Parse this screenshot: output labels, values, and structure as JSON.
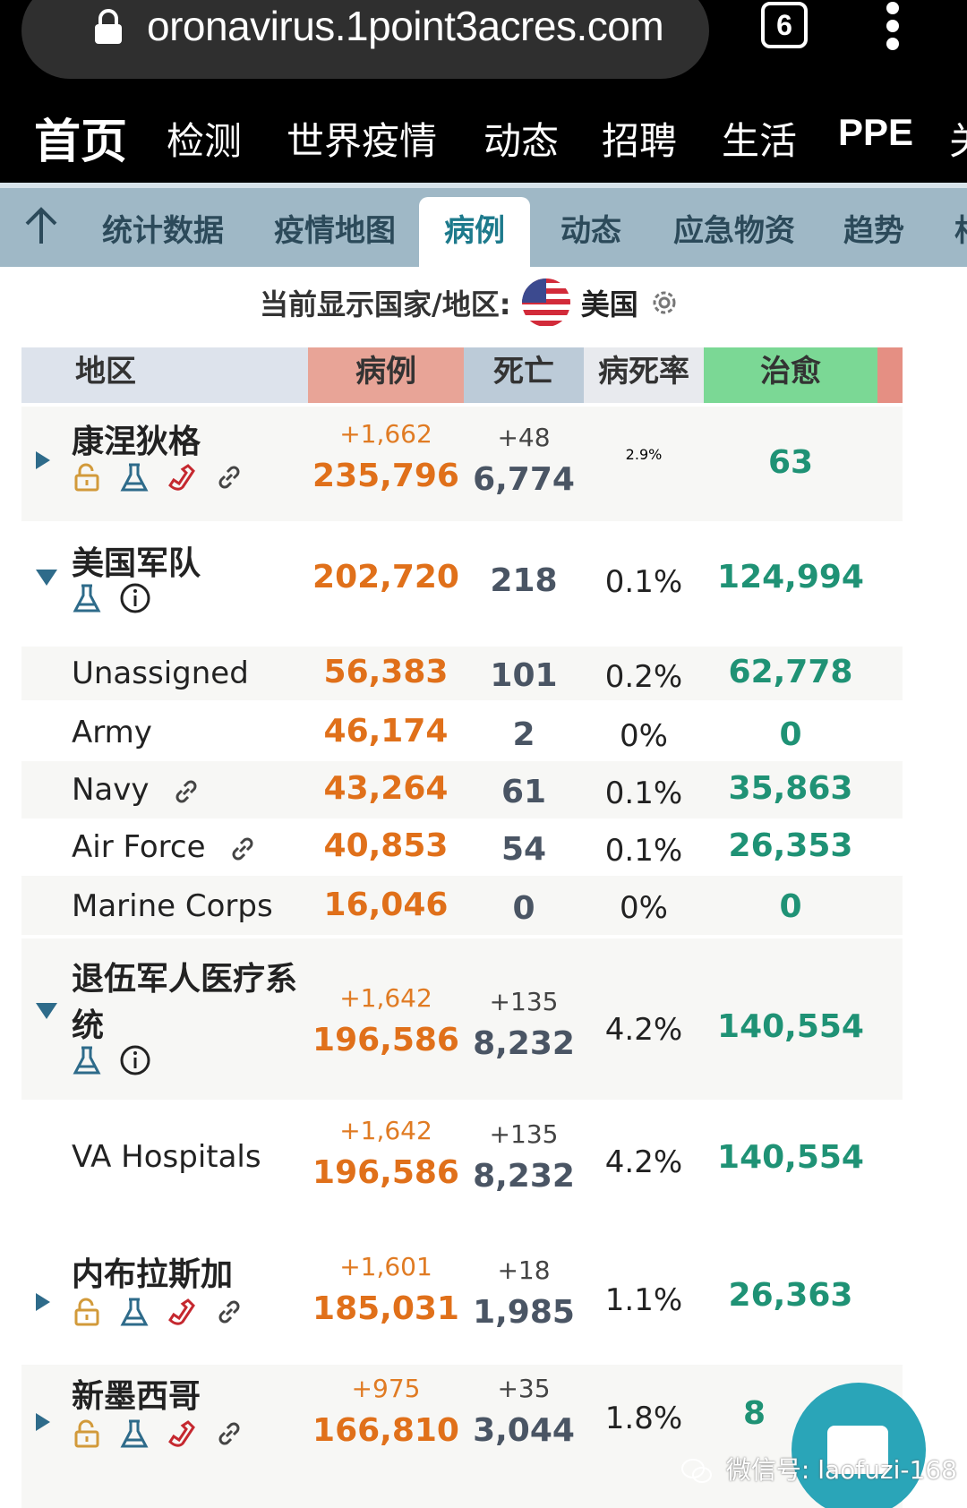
{
  "browser": {
    "url": "oronavirus.1point3acres.com",
    "tab_count": "6"
  },
  "main_nav": [
    "首页",
    "检测",
    "世界疫情",
    "动态",
    "招聘",
    "生活",
    "PPE",
    "关"
  ],
  "sub_nav": [
    "统计数据",
    "疫情地图",
    "病例",
    "动态",
    "应急物资",
    "趋势",
    "相"
  ],
  "country": {
    "label": "当前显示国家/地区:",
    "name": "美国"
  },
  "table": {
    "headers": {
      "region": "地区",
      "cases": "病例",
      "deaths": "死亡",
      "rate": "病死率",
      "recovered": "治愈"
    },
    "rows": [
      {
        "name": "康涅狄格",
        "cases_delta": "+1,662",
        "cases": "235,796",
        "deaths_delta": "+48",
        "deaths": "6,774",
        "rate": "2.9%",
        "recovered": "63"
      },
      {
        "name": "美国军队",
        "cases": "202,720",
        "deaths": "218",
        "rate": "0.1%",
        "recovered": "124,994"
      },
      {
        "name": "Unassigned",
        "cases": "56,383",
        "deaths": "101",
        "rate": "0.2%",
        "recovered": "62,778"
      },
      {
        "name": "Army",
        "cases": "46,174",
        "deaths": "2",
        "rate": "0%",
        "recovered": "0"
      },
      {
        "name": "Navy",
        "cases": "43,264",
        "deaths": "61",
        "rate": "0.1%",
        "recovered": "35,863"
      },
      {
        "name": "Air Force",
        "cases": "40,853",
        "deaths": "54",
        "rate": "0.1%",
        "recovered": "26,353"
      },
      {
        "name": "Marine Corps",
        "cases": "16,046",
        "deaths": "0",
        "rate": "0%",
        "recovered": "0"
      },
      {
        "name_line1": "退伍军人医疗系",
        "name_line2": "统",
        "cases_delta": "+1,642",
        "cases": "196,586",
        "deaths_delta": "+135",
        "deaths": "8,232",
        "rate": "4.2%",
        "recovered": "140,554"
      },
      {
        "name": "VA Hospitals",
        "cases_delta": "+1,642",
        "cases": "196,586",
        "deaths_delta": "+135",
        "deaths": "8,232",
        "rate": "4.2%",
        "recovered": "140,554"
      },
      {
        "name": "内布拉斯加",
        "cases_delta": "+1,601",
        "cases": "185,031",
        "deaths_delta": "+18",
        "deaths": "1,985",
        "rate": "1.1%",
        "recovered": "26,363"
      },
      {
        "name": "新墨西哥",
        "cases_delta": "+975",
        "cases": "166,810",
        "deaths_delta": "+35",
        "deaths": "3,044",
        "rate": "1.8%",
        "recovered": "8"
      }
    ]
  },
  "watermark": "微信号: laofuzi-168",
  "colors": {
    "orange": "#e0701a",
    "teal": "#1f9275",
    "nav_bg": "#000000",
    "subnav_bg": "#9fb8c6"
  }
}
